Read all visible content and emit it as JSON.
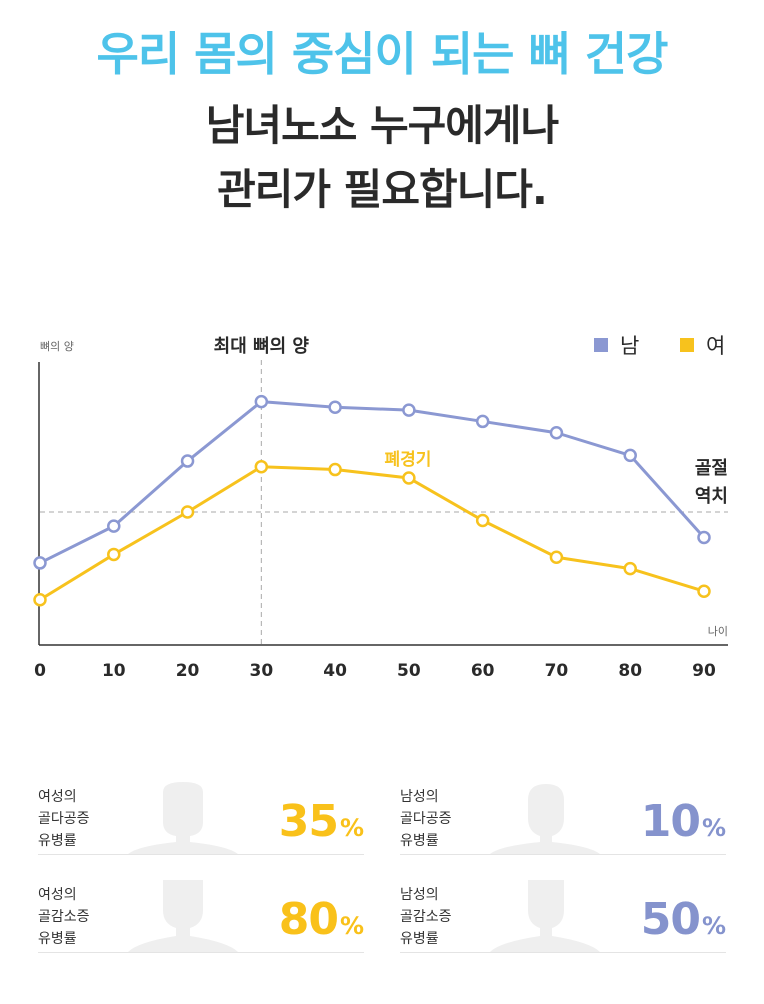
{
  "header": {
    "line1": "우리 몸의 중심이 되는 뼈 건강",
    "line2": "남녀노소 누구에게나",
    "line3": "관리가 필요합니다."
  },
  "colors": {
    "male": "#8b98d2",
    "female": "#f7c21d",
    "headline": "#4ec3ea"
  },
  "chart_data": {
    "type": "line",
    "title": "최대 뼈의 양",
    "ylabel": "뼈의 양",
    "xlabel": "나이",
    "x": [
      0,
      10,
      20,
      30,
      40,
      50,
      60,
      70,
      80,
      90
    ],
    "xlim": [
      0,
      90
    ],
    "ylim": [
      0,
      100
    ],
    "series": [
      {
        "name": "남",
        "color": "#8b98d2",
        "values": [
          29,
          42,
          65,
          86,
          84,
          83,
          79,
          75,
          67,
          38
        ]
      },
      {
        "name": "여",
        "color": "#f7c21d",
        "values": [
          16,
          32,
          47,
          63,
          62,
          59,
          44,
          31,
          27,
          19
        ]
      }
    ],
    "peak_x": 30,
    "fracture_threshold": 47,
    "annotations": {
      "menopause": "폐경기",
      "fracture_1": "골절",
      "fracture_2": "역치"
    },
    "legend": [
      "남",
      "여"
    ],
    "legend_position": "top-right"
  },
  "stats": [
    {
      "gender": "female",
      "label": "여성의\n골다공증\n유병률",
      "value": "35",
      "unit": "%"
    },
    {
      "gender": "male",
      "label": "남성의\n골다공증\n유병률",
      "value": "10",
      "unit": "%"
    },
    {
      "gender": "female",
      "label": "여성의\n골감소증\n유병률",
      "value": "80",
      "unit": "%"
    },
    {
      "gender": "male",
      "label": "남성의\n골감소증\n유병률",
      "value": "50",
      "unit": "%"
    }
  ]
}
